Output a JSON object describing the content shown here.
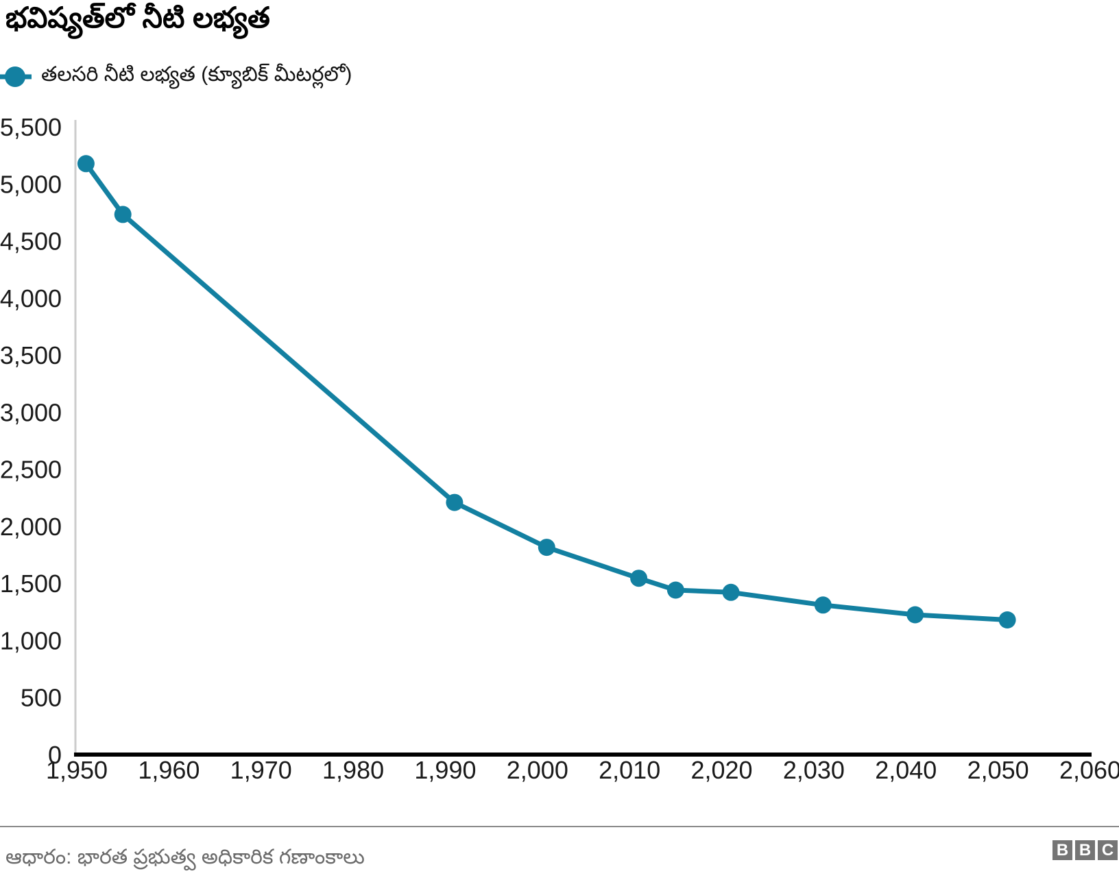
{
  "page": {
    "title": "భవిష్యత్‌లో నీటి లభ్యత",
    "legend_label": "తలసరి నీటి లభ్యత (క్యూబిక్ మీటర్లలో)",
    "source": "ఆధారం: భారత ప్రభుత్వ అధికారిక గణాంకాలు",
    "logo_letters": {
      "0": "B",
      "1": "B",
      "2": "C"
    }
  },
  "colors": {
    "line": "#1380A1",
    "x_axis": "#000000",
    "y_axis": "#cccccc",
    "tick_text": "#1a1a1a",
    "source_text": "#6a6a6a",
    "divider": "#8a8a8a",
    "logo_bg": "#757575",
    "logo_text": "#ffffff"
  },
  "chart_data": {
    "type": "line",
    "title": "భవిష్యత్‌లో నీటి లభ్యత",
    "xlabel": "",
    "ylabel": "",
    "legend_position": "top-left",
    "grid": "off",
    "x": [
      1951,
      1955,
      1991,
      2001,
      2011,
      2015,
      2021,
      2031,
      2041,
      2051
    ],
    "series": [
      {
        "name": "తలసరి నీటి లభ్యత (క్యూబిక్ మీటర్లలో)",
        "values": [
          5177,
          4732,
          2209,
          1816,
          1545,
          1441,
          1421,
          1310,
          1225,
          1180
        ]
      }
    ],
    "xlim": [
      1950,
      2060
    ],
    "ylim": [
      0,
      5500
    ],
    "x_ticks": [
      1950,
      1960,
      1970,
      1980,
      1990,
      2000,
      2010,
      2020,
      2030,
      2040,
      2050,
      2060
    ],
    "x_tick_labels": [
      "1,950",
      "1,960",
      "1,970",
      "1,980",
      "1,990",
      "2,000",
      "2,010",
      "2,020",
      "2,030",
      "2,040",
      "2,050",
      "2,060"
    ],
    "y_ticks": [
      0,
      500,
      1000,
      1500,
      2000,
      2500,
      3000,
      3500,
      4000,
      4500,
      5000,
      5500
    ],
    "y_tick_labels": [
      "0",
      "500",
      "1,000",
      "1,500",
      "2,000",
      "2,500",
      "3,000",
      "3,500",
      "4,000",
      "4,500",
      "5,000",
      "5,500"
    ],
    "marker_radius": 12.5,
    "line_width": 7
  }
}
